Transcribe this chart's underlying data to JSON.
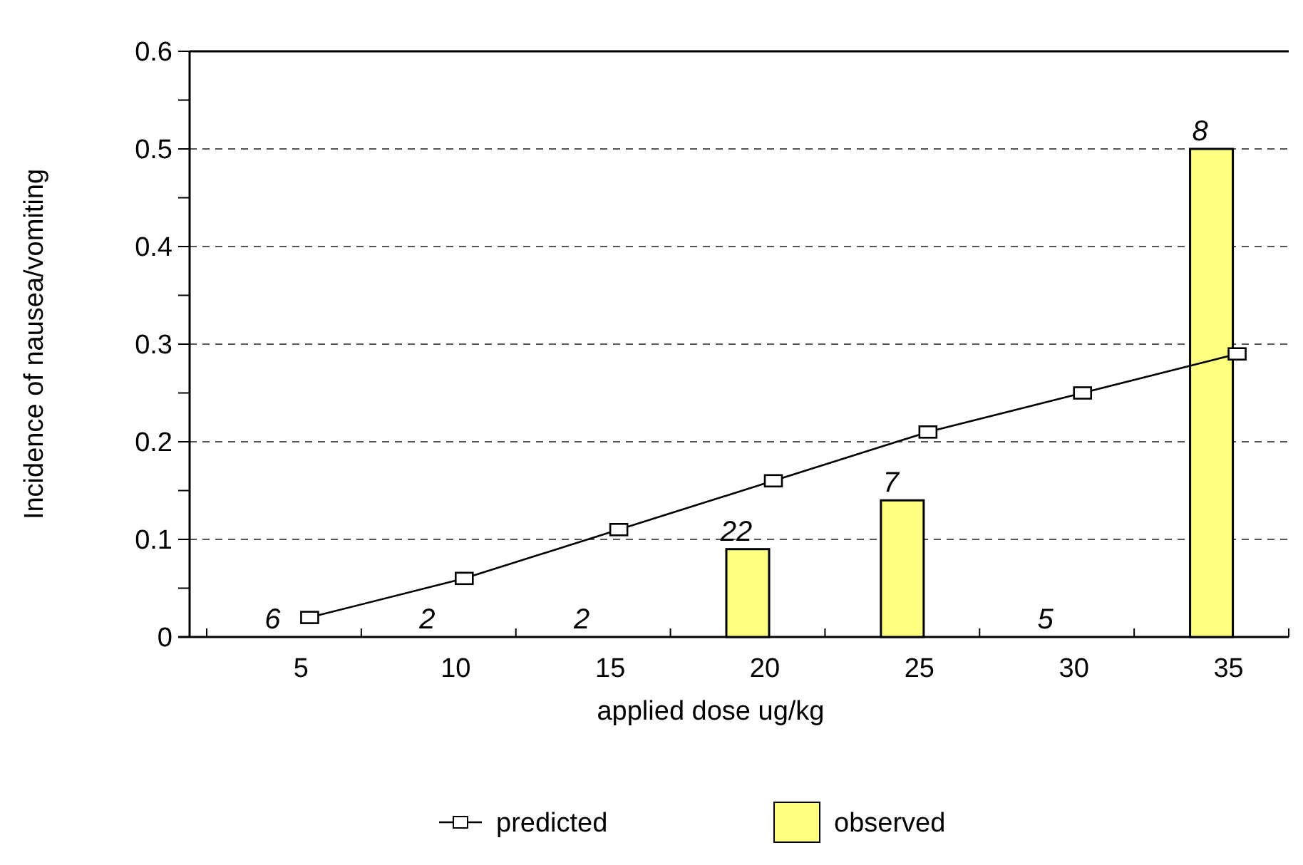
{
  "chart_data": {
    "type": "bar",
    "xlabel": "applied dose ug/kg",
    "ylabel": "Incidence of nausea/vomiting",
    "categories": [
      "5",
      "10",
      "15",
      "20",
      "25",
      "30",
      "35"
    ],
    "series": [
      {
        "name": "predicted",
        "type": "line",
        "color": "#000000",
        "marker": "square",
        "line_style": "solid",
        "values": [
          0.02,
          0.06,
          0.11,
          0.16,
          0.21,
          0.25,
          0.29
        ]
      },
      {
        "name": "observed",
        "type": "bar",
        "color": "#ffff80",
        "values": [
          0,
          0,
          0,
          0.09,
          0.14,
          0,
          0.5
        ]
      }
    ],
    "annotations": [
      {
        "text": "6",
        "x": "5",
        "y": 0
      },
      {
        "text": "2",
        "x": "10",
        "y": 0
      },
      {
        "text": "2",
        "x": "15",
        "y": 0
      },
      {
        "text": "22",
        "x": "20",
        "y": 0.09
      },
      {
        "text": "7",
        "x": "25",
        "y": 0.14
      },
      {
        "text": "5",
        "x": "30",
        "y": 0
      },
      {
        "text": "8",
        "x": "35",
        "y": 0.5
      }
    ],
    "ylim": [
      0,
      0.6
    ],
    "yticks": [
      0,
      {
        "value": 0.05,
        "label": null
      },
      0.1,
      {
        "value": 0.15,
        "label": null
      },
      0.2,
      {
        "value": 0.25,
        "label": null
      },
      0.3,
      {
        "value": 0.35,
        "label": null
      },
      0.4,
      {
        "value": 0.45,
        "label": null
      },
      0.5,
      {
        "value": 0.55,
        "label": null
      },
      0.6
    ],
    "grid": "y",
    "legend": "bottom"
  }
}
